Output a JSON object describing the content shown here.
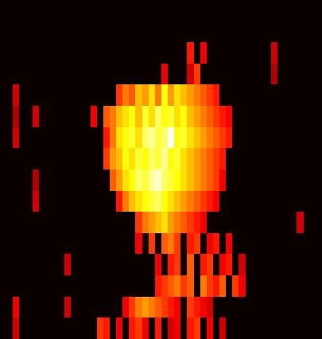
{
  "chart_data": {
    "type": "heatmap",
    "color": "hot",
    "tick_labels": false,
    "cells": [
      [
        0,
        0,
        0,
        0,
        0,
        0,
        0,
        0,
        0,
        0,
        0,
        0,
        0,
        0,
        0,
        0,
        0,
        0,
        0,
        0,
        0,
        0,
        0,
        0,
        0,
        0,
        0,
        0,
        0,
        0,
        0,
        0,
        0,
        0,
        0,
        0,
        0,
        0,
        0,
        0,
        0,
        0,
        0,
        0,
        0,
        0,
        0,
        0,
        0,
        0
      ],
      [
        0,
        0,
        0,
        0,
        0,
        0,
        0,
        0,
        0,
        0,
        0,
        0,
        0,
        0,
        0,
        0,
        0,
        0,
        0,
        0,
        0,
        0,
        0,
        0,
        0,
        0,
        0,
        0,
        0,
        0,
        0,
        0,
        0,
        0,
        0,
        0,
        0,
        0,
        0,
        0,
        0,
        0,
        0,
        0,
        0,
        0,
        0,
        0,
        0,
        0
      ],
      [
        0,
        0,
        0,
        0,
        0,
        0,
        0,
        0,
        0,
        0,
        0,
        0,
        0,
        0,
        0,
        0,
        0,
        0,
        0,
        0,
        0,
        0,
        0,
        0,
        0,
        0,
        0,
        0,
        0,
        40,
        0,
        35,
        0,
        0,
        0,
        0,
        0,
        0,
        0,
        0,
        0,
        0,
        30,
        0,
        0,
        0,
        0,
        0,
        0,
        0
      ],
      [
        0,
        0,
        0,
        0,
        0,
        0,
        0,
        0,
        0,
        0,
        0,
        0,
        0,
        0,
        0,
        0,
        0,
        0,
        0,
        0,
        0,
        0,
        0,
        0,
        0,
        35,
        0,
        0,
        0,
        30,
        45,
        0,
        0,
        0,
        0,
        0,
        0,
        0,
        0,
        0,
        0,
        0,
        25,
        0,
        0,
        0,
        0,
        0,
        0,
        0
      ],
      [
        0,
        0,
        30,
        0,
        0,
        0,
        0,
        0,
        0,
        0,
        0,
        0,
        0,
        0,
        0,
        0,
        0,
        0,
        45,
        55,
        50,
        65,
        60,
        70,
        55,
        75,
        60,
        70,
        65,
        60,
        55,
        50,
        45,
        40,
        0,
        0,
        0,
        0,
        0,
        0,
        0,
        0,
        0,
        0,
        0,
        0,
        0,
        0,
        0,
        0
      ],
      [
        0,
        0,
        25,
        0,
        0,
        30,
        0,
        0,
        0,
        0,
        0,
        0,
        0,
        0,
        35,
        0,
        50,
        55,
        65,
        70,
        75,
        65,
        80,
        70,
        85,
        75,
        80,
        70,
        75,
        65,
        60,
        55,
        50,
        45,
        40,
        35,
        0,
        0,
        0,
        0,
        0,
        0,
        0,
        0,
        0,
        0,
        0,
        0,
        0,
        0
      ],
      [
        0,
        0,
        30,
        0,
        0,
        0,
        0,
        0,
        0,
        0,
        0,
        0,
        0,
        0,
        0,
        0,
        40,
        55,
        70,
        75,
        80,
        70,
        85,
        90,
        80,
        85,
        100,
        75,
        80,
        70,
        65,
        60,
        55,
        50,
        45,
        40,
        0,
        0,
        0,
        0,
        0,
        0,
        0,
        0,
        0,
        0,
        0,
        0,
        0,
        0
      ],
      [
        0,
        0,
        0,
        0,
        0,
        0,
        0,
        0,
        0,
        0,
        0,
        0,
        0,
        0,
        0,
        0,
        45,
        60,
        65,
        75,
        70,
        80,
        75,
        85,
        80,
        90,
        75,
        80,
        70,
        65,
        60,
        55,
        50,
        45,
        40,
        0,
        0,
        0,
        0,
        0,
        0,
        0,
        0,
        0,
        0,
        0,
        0,
        0,
        0,
        0
      ],
      [
        0,
        0,
        0,
        0,
        0,
        25,
        0,
        0,
        0,
        0,
        0,
        0,
        0,
        0,
        0,
        0,
        0,
        50,
        60,
        70,
        75,
        85,
        80,
        90,
        95,
        85,
        80,
        75,
        70,
        65,
        60,
        55,
        50,
        45,
        35,
        0,
        0,
        0,
        0,
        0,
        0,
        0,
        0,
        0,
        0,
        0,
        0,
        0,
        0,
        0
      ],
      [
        0,
        0,
        0,
        0,
        0,
        30,
        0,
        0,
        0,
        0,
        0,
        0,
        0,
        0,
        0,
        0,
        0,
        0,
        40,
        55,
        65,
        70,
        75,
        80,
        85,
        75,
        70,
        65,
        60,
        55,
        50,
        45,
        40,
        35,
        0,
        0,
        0,
        0,
        0,
        0,
        0,
        0,
        0,
        0,
        0,
        0,
        0,
        0,
        0,
        0
      ],
      [
        0,
        0,
        0,
        0,
        0,
        0,
        0,
        0,
        0,
        0,
        0,
        0,
        0,
        0,
        0,
        0,
        0,
        0,
        0,
        0,
        0,
        45,
        55,
        60,
        65,
        70,
        60,
        55,
        50,
        45,
        40,
        35,
        0,
        0,
        0,
        0,
        0,
        0,
        0,
        0,
        0,
        0,
        0,
        0,
        0,
        0,
        30,
        0,
        0,
        0
      ],
      [
        0,
        0,
        0,
        0,
        0,
        0,
        0,
        0,
        0,
        0,
        0,
        0,
        0,
        0,
        0,
        0,
        0,
        0,
        0,
        0,
        0,
        35,
        0,
        45,
        0,
        50,
        55,
        45,
        0,
        40,
        45,
        0,
        35,
        40,
        0,
        35,
        0,
        0,
        0,
        0,
        0,
        0,
        0,
        0,
        0,
        0,
        0,
        0,
        0,
        0
      ],
      [
        0,
        0,
        0,
        0,
        0,
        0,
        0,
        0,
        0,
        0,
        30,
        0,
        0,
        0,
        0,
        0,
        0,
        0,
        0,
        0,
        0,
        0,
        0,
        0,
        35,
        0,
        40,
        45,
        0,
        50,
        0,
        40,
        45,
        0,
        35,
        40,
        0,
        30,
        0,
        0,
        0,
        0,
        0,
        0,
        0,
        0,
        0,
        0,
        0,
        0
      ],
      [
        0,
        0,
        0,
        0,
        0,
        0,
        0,
        0,
        0,
        0,
        0,
        0,
        0,
        0,
        0,
        0,
        0,
        0,
        0,
        0,
        0,
        0,
        0,
        0,
        40,
        45,
        50,
        55,
        45,
        50,
        0,
        55,
        45,
        40,
        50,
        0,
        45,
        35,
        0,
        0,
        0,
        0,
        0,
        0,
        0,
        0,
        0,
        0,
        0,
        0
      ],
      [
        0,
        0,
        35,
        0,
        0,
        0,
        0,
        0,
        0,
        0,
        30,
        0,
        0,
        0,
        0,
        0,
        0,
        0,
        0,
        35,
        45,
        55,
        60,
        55,
        50,
        45,
        40,
        35,
        0,
        45,
        40,
        35,
        30,
        0,
        0,
        0,
        0,
        0,
        0,
        0,
        0,
        0,
        0,
        0,
        0,
        0,
        0,
        0,
        0,
        0
      ],
      [
        0,
        0,
        30,
        0,
        0,
        0,
        0,
        0,
        0,
        0,
        0,
        0,
        0,
        0,
        0,
        45,
        40,
        0,
        35,
        0,
        40,
        45,
        35,
        0,
        40,
        0,
        30,
        35,
        0,
        40,
        45,
        0,
        35,
        0,
        30,
        0,
        0,
        0,
        0,
        0,
        0,
        0,
        0,
        0,
        0,
        0,
        0,
        0,
        0,
        0
      ]
    ]
  }
}
